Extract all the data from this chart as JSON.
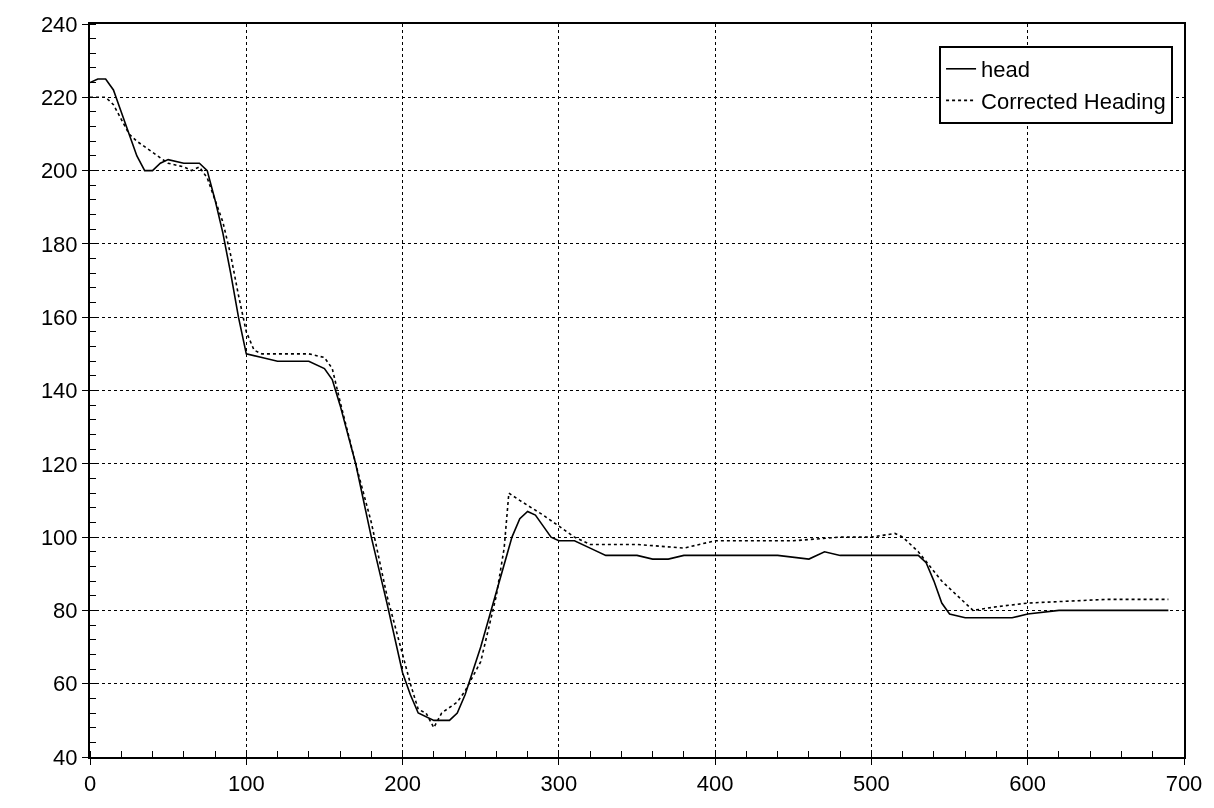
{
  "chart_data": {
    "type": "line",
    "xlim": [
      0,
      700
    ],
    "ylim": [
      40,
      240
    ],
    "xticks": [
      0,
      100,
      200,
      300,
      400,
      500,
      600,
      700
    ],
    "yticks": [
      40,
      60,
      80,
      100,
      120,
      140,
      160,
      180,
      200,
      220,
      240
    ],
    "grid": true,
    "legend": "top right",
    "marker": "none",
    "series": [
      {
        "name": "head",
        "color": "#000000",
        "line_style": "solid",
        "x": [
          0,
          5,
          10,
          15,
          20,
          25,
          30,
          35,
          40,
          45,
          50,
          60,
          70,
          75,
          80,
          85,
          90,
          95,
          100,
          110,
          120,
          140,
          150,
          155,
          160,
          170,
          180,
          190,
          200,
          205,
          210,
          220,
          230,
          235,
          240,
          250,
          260,
          270,
          275,
          280,
          285,
          290,
          295,
          300,
          310,
          320,
          330,
          350,
          360,
          370,
          380,
          400,
          420,
          440,
          460,
          470,
          480,
          500,
          520,
          530,
          535,
          540,
          545,
          550,
          560,
          580,
          590,
          600,
          620,
          650,
          690
        ],
        "values": [
          224,
          225,
          225,
          222,
          216,
          210,
          204,
          200,
          200,
          202,
          203,
          202,
          202,
          200,
          192,
          183,
          172,
          160,
          150,
          149,
          148,
          148,
          146,
          143,
          136,
          120,
          100,
          82,
          63,
          57,
          52,
          50,
          50,
          52,
          57,
          70,
          85,
          100,
          105,
          107,
          106,
          103,
          100,
          99,
          99,
          97,
          95,
          95,
          94,
          94,
          95,
          95,
          95,
          95,
          94,
          96,
          95,
          95,
          95,
          95,
          93,
          88,
          82,
          79,
          78,
          78,
          78,
          79,
          80,
          80,
          80
        ]
      },
      {
        "name": "Corrected Heading",
        "color": "#000000",
        "line_style": "dotted",
        "x": [
          0,
          10,
          15,
          20,
          25,
          30,
          40,
          50,
          60,
          65,
          70,
          75,
          80,
          85,
          90,
          95,
          100,
          105,
          110,
          120,
          130,
          140,
          150,
          155,
          160,
          170,
          180,
          190,
          200,
          205,
          210,
          215,
          220,
          225,
          235,
          240,
          250,
          260,
          265,
          268,
          275,
          290,
          300,
          310,
          320,
          350,
          380,
          400,
          450,
          480,
          500,
          515,
          520,
          530,
          545,
          560,
          565,
          580,
          600,
          650,
          690
        ],
        "values": [
          220,
          220,
          218,
          214,
          210,
          208,
          205,
          202,
          201,
          200,
          201,
          198,
          192,
          186,
          177,
          166,
          156,
          151,
          150,
          150,
          150,
          150,
          149,
          146,
          137,
          120,
          104,
          84,
          68,
          60,
          53,
          52,
          48,
          52,
          55,
          58,
          66,
          84,
          97,
          112,
          110,
          106,
          103,
          100,
          98,
          98,
          97,
          99,
          99,
          100,
          100,
          101,
          100,
          96,
          88,
          82,
          80,
          81,
          82,
          83,
          83
        ]
      }
    ]
  }
}
